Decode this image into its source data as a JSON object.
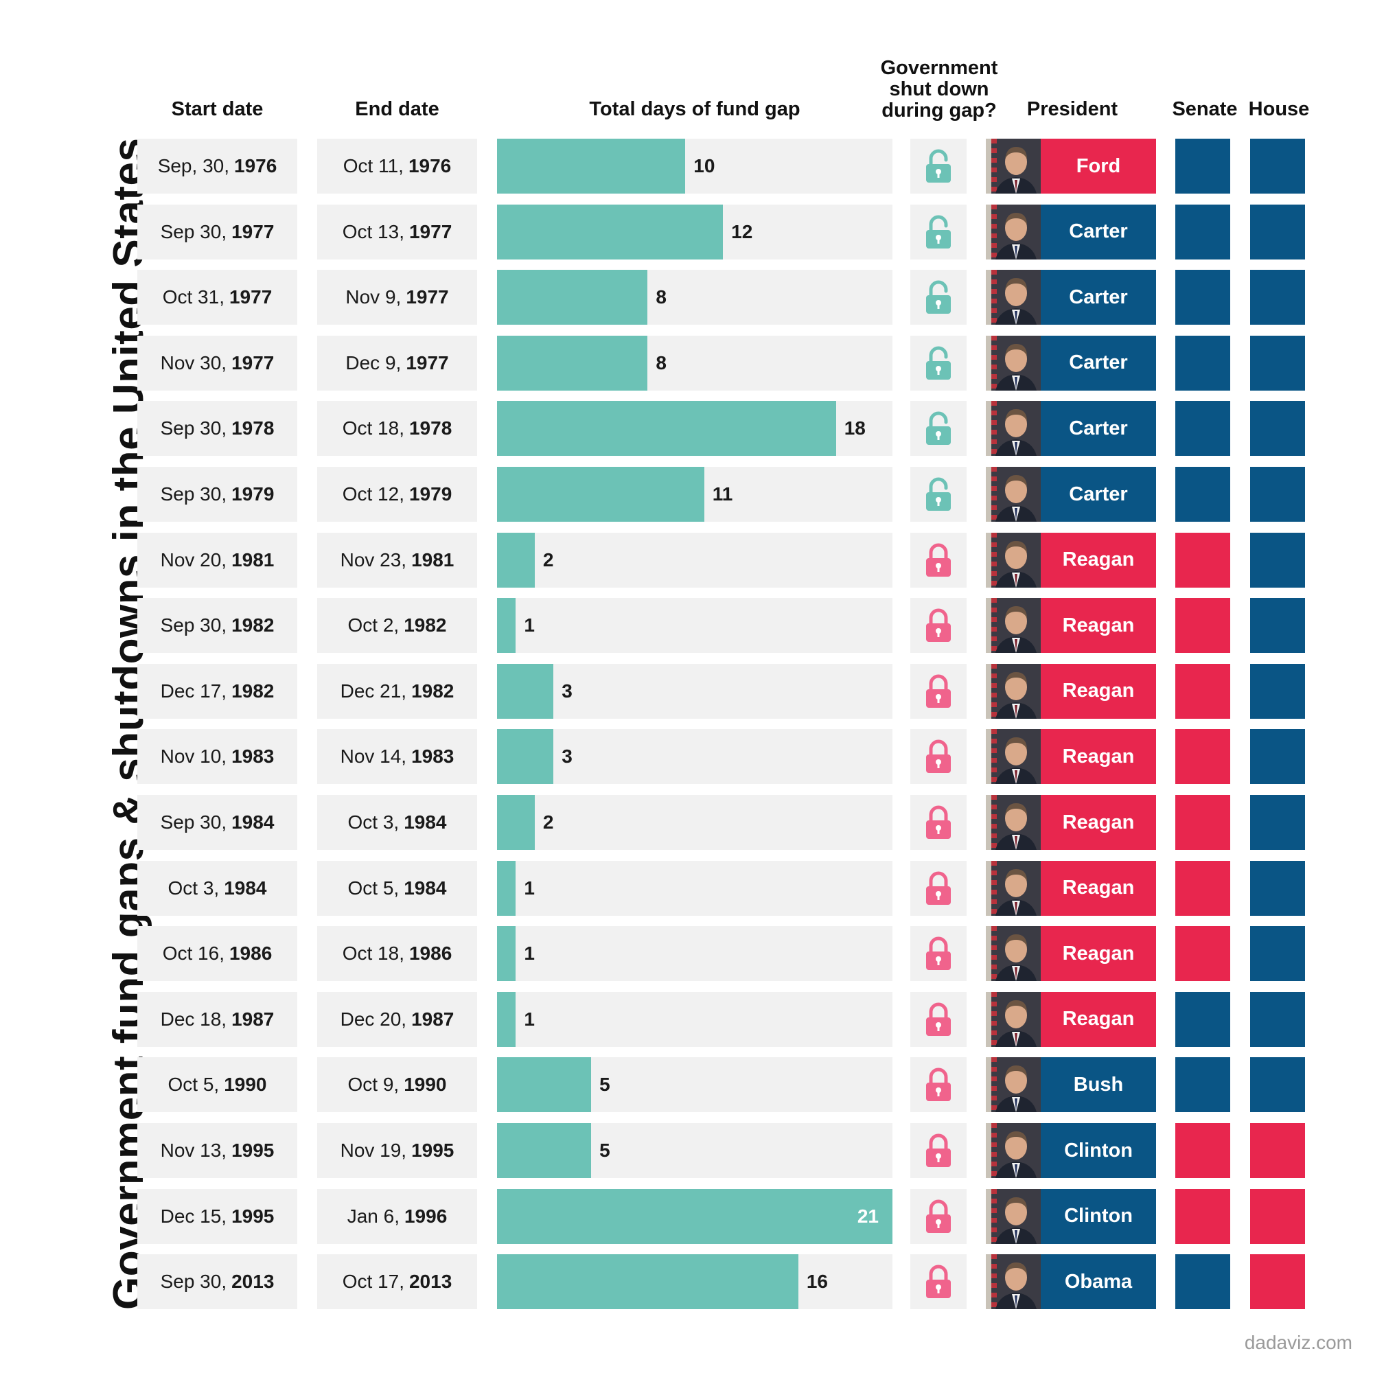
{
  "title": "Government fund gaps & shutdowns in the United States",
  "headers": {
    "start": "Start date",
    "end": "End date",
    "days": "Total days of fund gap",
    "shutdown_l1": "Government",
    "shutdown_l2": "shut down",
    "shutdown_l3": "during gap?",
    "president": "President",
    "senate": "Senate",
    "house": "House"
  },
  "credit": "dadaviz.com",
  "colors": {
    "bar": "#6cc2b6",
    "republican": "#e8264e",
    "democrat": "#0a5585",
    "lock_open": "#6cc2b6",
    "lock_closed": "#f0638c",
    "cell_bg": "#f1f1f1"
  },
  "icons": {
    "open": "unlocked-padlock-icon",
    "closed": "locked-padlock-icon"
  },
  "chart_data": {
    "type": "table",
    "title": "Government fund gaps & shutdowns in the United States",
    "days_max": 21,
    "columns": [
      "Start date",
      "End date",
      "Total days of fund gap",
      "Government shut down during gap?",
      "President",
      "Senate",
      "House"
    ],
    "rows": [
      {
        "start_md": "Sep, 30,",
        "start_y": "1976",
        "end_md": "Oct 11,",
        "end_y": "1976",
        "days": 10,
        "shutdown": false,
        "president": "Ford",
        "pres_party": "R",
        "senate": "D",
        "house": "D"
      },
      {
        "start_md": "Sep 30,",
        "start_y": "1977",
        "end_md": "Oct 13,",
        "end_y": "1977",
        "days": 12,
        "shutdown": false,
        "president": "Carter",
        "pres_party": "D",
        "senate": "D",
        "house": "D"
      },
      {
        "start_md": "Oct 31,",
        "start_y": "1977",
        "end_md": "Nov 9,",
        "end_y": "1977",
        "days": 8,
        "shutdown": false,
        "president": "Carter",
        "pres_party": "D",
        "senate": "D",
        "house": "D"
      },
      {
        "start_md": "Nov 30,",
        "start_y": "1977",
        "end_md": "Dec 9,",
        "end_y": "1977",
        "days": 8,
        "shutdown": false,
        "president": "Carter",
        "pres_party": "D",
        "senate": "D",
        "house": "D"
      },
      {
        "start_md": "Sep 30,",
        "start_y": "1978",
        "end_md": "Oct 18,",
        "end_y": "1978",
        "days": 18,
        "shutdown": false,
        "president": "Carter",
        "pres_party": "D",
        "senate": "D",
        "house": "D"
      },
      {
        "start_md": "Sep 30,",
        "start_y": "1979",
        "end_md": "Oct 12,",
        "end_y": "1979",
        "days": 11,
        "shutdown": false,
        "president": "Carter",
        "pres_party": "D",
        "senate": "D",
        "house": "D"
      },
      {
        "start_md": "Nov 20,",
        "start_y": "1981",
        "end_md": "Nov 23,",
        "end_y": "1981",
        "days": 2,
        "shutdown": true,
        "president": "Reagan",
        "pres_party": "R",
        "senate": "R",
        "house": "D"
      },
      {
        "start_md": "Sep 30,",
        "start_y": "1982",
        "end_md": "Oct 2,",
        "end_y": "1982",
        "days": 1,
        "shutdown": true,
        "president": "Reagan",
        "pres_party": "R",
        "senate": "R",
        "house": "D"
      },
      {
        "start_md": "Dec 17,",
        "start_y": "1982",
        "end_md": "Dec 21,",
        "end_y": "1982",
        "days": 3,
        "shutdown": true,
        "president": "Reagan",
        "pres_party": "R",
        "senate": "R",
        "house": "D"
      },
      {
        "start_md": "Nov 10,",
        "start_y": "1983",
        "end_md": "Nov 14,",
        "end_y": "1983",
        "days": 3,
        "shutdown": true,
        "president": "Reagan",
        "pres_party": "R",
        "senate": "R",
        "house": "D"
      },
      {
        "start_md": "Sep 30,",
        "start_y": "1984",
        "end_md": "Oct 3,",
        "end_y": "1984",
        "days": 2,
        "shutdown": true,
        "president": "Reagan",
        "pres_party": "R",
        "senate": "R",
        "house": "D"
      },
      {
        "start_md": "Oct 3,",
        "start_y": "1984",
        "end_md": "Oct 5,",
        "end_y": "1984",
        "days": 1,
        "shutdown": true,
        "president": "Reagan",
        "pres_party": "R",
        "senate": "R",
        "house": "D"
      },
      {
        "start_md": "Oct 16,",
        "start_y": "1986",
        "end_md": "Oct 18,",
        "end_y": "1986",
        "days": 1,
        "shutdown": true,
        "president": "Reagan",
        "pres_party": "R",
        "senate": "R",
        "house": "D"
      },
      {
        "start_md": "Dec 18,",
        "start_y": "1987",
        "end_md": "Dec 20,",
        "end_y": "1987",
        "days": 1,
        "shutdown": true,
        "president": "Reagan",
        "pres_party": "R",
        "senate": "D",
        "house": "D"
      },
      {
        "start_md": "Oct 5,",
        "start_y": "1990",
        "end_md": "Oct 9,",
        "end_y": "1990",
        "days": 5,
        "shutdown": true,
        "president": "Bush",
        "pres_party": "D",
        "senate": "D",
        "house": "D"
      },
      {
        "start_md": "Nov 13,",
        "start_y": "1995",
        "end_md": "Nov 19,",
        "end_y": "1995",
        "days": 5,
        "shutdown": true,
        "president": "Clinton",
        "pres_party": "D",
        "senate": "R",
        "house": "R"
      },
      {
        "start_md": "Dec 15,",
        "start_y": "1995",
        "end_md": "Jan 6,",
        "end_y": "1996",
        "days": 21,
        "shutdown": true,
        "president": "Clinton",
        "pres_party": "D",
        "senate": "R",
        "house": "R"
      },
      {
        "start_md": "Sep 30,",
        "start_y": "2013",
        "end_md": "Oct 17,",
        "end_y": "2013",
        "days": 16,
        "shutdown": true,
        "president": "Obama",
        "pres_party": "D",
        "senate": "D",
        "house": "R"
      }
    ]
  }
}
